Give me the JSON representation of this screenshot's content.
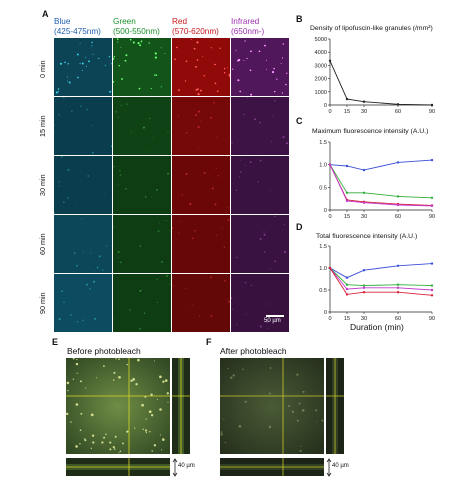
{
  "panel_labels": {
    "A": "A",
    "B": "B",
    "C": "C",
    "D": "D",
    "E": "E",
    "F": "F"
  },
  "channels": [
    {
      "name": "Blue",
      "range": "(425-475nm)",
      "color": "#1f5fae",
      "tint": "#0a3a4a"
    },
    {
      "name": "Green",
      "range": "(500-550nm)",
      "color": "#1c8f2a",
      "tint": "#0d3a12"
    },
    {
      "name": "Red",
      "range": "(570-620nm)",
      "color": "#c8181c",
      "tint": "#5a0606"
    },
    {
      "name": "Infrared",
      "range": "(650nm-)",
      "color": "#9b2fae",
      "tint": "#35103c"
    }
  ],
  "rows": [
    "0 min",
    "15 min",
    "30 min",
    "60 min",
    "90 min"
  ],
  "scale_bar": "50 µm",
  "chart_data": [
    {
      "type": "line",
      "title": "Density of lipofuscin-like granules (/mm²)",
      "x": [
        0,
        15,
        30,
        60,
        90
      ],
      "xticks": [
        "0",
        "15",
        "30",
        "60",
        "90"
      ],
      "ylim": [
        0,
        5000
      ],
      "yticks": [
        "0",
        "1000",
        "2000",
        "3000",
        "4000",
        "5000"
      ],
      "series": [
        {
          "color": "#222222",
          "values": [
            3350,
            450,
            250,
            50,
            0
          ]
        }
      ]
    },
    {
      "type": "line",
      "title": "Maximum fluorescence intensity (A.U.)",
      "x": [
        0,
        15,
        30,
        60,
        90
      ],
      "xticks": [
        "0",
        "15",
        "30",
        "60",
        "90"
      ],
      "ylim": [
        0,
        1.5
      ],
      "yticks": [
        "0",
        "0.5",
        "1.0",
        "1.5"
      ],
      "series": [
        {
          "color": "#3a4fd8",
          "values": [
            1.0,
            0.97,
            0.88,
            1.05,
            1.1
          ]
        },
        {
          "color": "#2fae3a",
          "values": [
            1.0,
            0.38,
            0.38,
            0.3,
            0.27
          ]
        },
        {
          "color": "#d8203c",
          "values": [
            1.0,
            0.22,
            0.18,
            0.13,
            0.1
          ]
        },
        {
          "color": "#c13acb",
          "values": [
            1.0,
            0.2,
            0.16,
            0.11,
            0.09
          ]
        }
      ]
    },
    {
      "type": "line",
      "title": "Total fluorescence intensity (A.U.)",
      "xlabel": "Duration (min)",
      "x": [
        0,
        15,
        30,
        60,
        90
      ],
      "xticks": [
        "0",
        "15",
        "30",
        "60",
        "90"
      ],
      "ylim": [
        0,
        1.5
      ],
      "yticks": [
        "0",
        "0.5",
        "1.0",
        "1.5"
      ],
      "series": [
        {
          "color": "#3a4fd8",
          "values": [
            1.0,
            0.78,
            0.95,
            1.05,
            1.1
          ]
        },
        {
          "color": "#2fae3a",
          "values": [
            1.0,
            0.62,
            0.6,
            0.62,
            0.6
          ]
        },
        {
          "color": "#c13acb",
          "values": [
            1.0,
            0.52,
            0.55,
            0.55,
            0.5
          ]
        },
        {
          "color": "#d8203c",
          "values": [
            1.0,
            0.4,
            0.45,
            0.45,
            0.38
          ]
        }
      ]
    }
  ],
  "panel_e": {
    "title": "Before photobleach",
    "scale": "40 µm"
  },
  "panel_f": {
    "title": "After photobleach",
    "scale": "40 µm"
  }
}
